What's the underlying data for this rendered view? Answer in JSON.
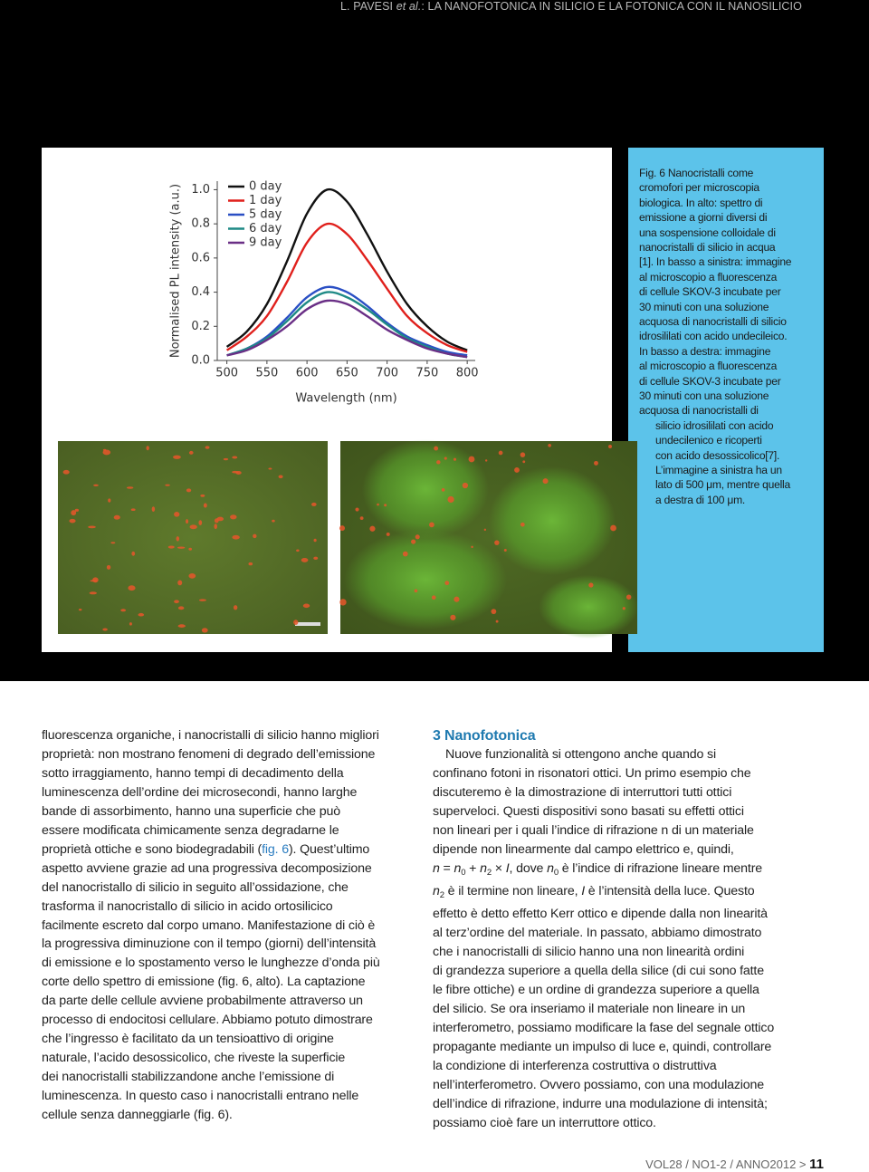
{
  "header": {
    "segments": [
      "L. PAVESI ",
      "et al.",
      ": LA NANOFOTONICA IN SILICIO E LA FOTONICA CON IL NANOSILICIO"
    ]
  },
  "chart_data": {
    "type": "line",
    "x_label": "Wavelength (nm)",
    "y_label": "Normalised PL intensity (a.u.)",
    "x": [
      500,
      525,
      550,
      575,
      600,
      625,
      650,
      675,
      700,
      725,
      750,
      775,
      800
    ],
    "series": [
      {
        "name": "0 day",
        "color": "#111111",
        "values": [
          0.08,
          0.17,
          0.33,
          0.58,
          0.86,
          1.0,
          0.93,
          0.74,
          0.52,
          0.33,
          0.2,
          0.11,
          0.06
        ]
      },
      {
        "name": "1 day",
        "color": "#e0201c",
        "values": [
          0.06,
          0.14,
          0.26,
          0.46,
          0.69,
          0.8,
          0.74,
          0.59,
          0.42,
          0.26,
          0.16,
          0.09,
          0.05
        ]
      },
      {
        "name": "5 day",
        "color": "#2a4fc4",
        "values": [
          0.03,
          0.07,
          0.14,
          0.25,
          0.37,
          0.43,
          0.4,
          0.32,
          0.22,
          0.14,
          0.09,
          0.05,
          0.03
        ]
      },
      {
        "name": "6 day",
        "color": "#1f8a86",
        "values": [
          0.03,
          0.07,
          0.13,
          0.23,
          0.34,
          0.4,
          0.37,
          0.3,
          0.21,
          0.13,
          0.08,
          0.04,
          0.02
        ]
      },
      {
        "name": "9 day",
        "color": "#6a2f86",
        "values": [
          0.03,
          0.06,
          0.12,
          0.2,
          0.3,
          0.35,
          0.33,
          0.26,
          0.18,
          0.12,
          0.07,
          0.04,
          0.02
        ]
      }
    ],
    "xlim": [
      488,
      810
    ],
    "ylim": [
      0,
      1.05
    ],
    "xticks": [
      500,
      550,
      600,
      650,
      700,
      750,
      800
    ],
    "yticks": [
      {
        "value": 0,
        "label": "0.0"
      },
      0.2,
      0.4,
      0.6,
      0.8,
      {
        "value": 1,
        "label": "1.0"
      }
    ],
    "legend": "upper left"
  },
  "caption": {
    "lines": [
      "Fig. 6  Nanocristalli come",
      "cromofori per microscopia",
      "biologica. In alto: spettro di",
      "emissione a giorni diversi di",
      "una sospensione colloidale di",
      "nanocristalli di silicio in acqua",
      "[1]. In basso a sinistra: immagine",
      "al microscopio a fluorescenza",
      "di cellule SKOV-3 incubate per",
      "30 minuti con una soluzione",
      "acquosa di nanocristalli di silicio",
      "idrosililati con acido undecileico.",
      "In basso a destra: immagine",
      "al microscopio a fluorescenza",
      "di cellule SKOV-3 incubate per",
      "30 minuti con una soluzione",
      "acquosa di nanocristalli di",
      "silicio idrosililati con acido",
      "undecilenico e ricoperti",
      "con acido desossicolico[7].",
      "L’immagine a sinistra ha un",
      "lato di 500 μm, mentre quella",
      "a destra di 100 μm."
    ]
  },
  "body": {
    "left": {
      "lines": [
        "fluorescenza organiche, i nanocristalli di silicio hanno migliori",
        "proprietà: non mostrano fenomeni di degrado dell’emissione",
        "sotto irraggiamento, hanno tempi di decadimento della",
        "luminescenza dell’ordine dei microsecondi, hanno larghe",
        "bande di assorbimento, hanno una superficie che può",
        "essere modificata chimicamente senza degradarne le",
        [
          "proprietà ottiche e sono biodegradabili (",
          "fig. 6",
          "). Quest’ultimo"
        ],
        "aspetto avviene grazie ad una progressiva decomposizione",
        "del nanocristallo di silicio in seguito all’ossidazione, che",
        "trasforma il nanocristallo di silicio in acido ortosilicico",
        "facilmente escreto dal corpo umano. Manifestazione di ciò è",
        "la progressiva diminuzione con il tempo (giorni) dell’intensità",
        "di emissione e lo spostamento verso le lunghezze d’onda più",
        "corte dello spettro di emissione (fig. 6, alto). La captazione",
        "da parte delle cellule avviene probabilmente attraverso un",
        "processo di endocitosi cellulare. Abbiamo potuto dimostrare",
        "che l’ingresso è facilitato da un tensioattivo di origine",
        "naturale, l’acido desossicolico, che riveste la superficie",
        "dei nanocristalli stabilizzandone anche l’emissione di",
        "luminescenza. In questo caso i nanocristalli entrano nelle",
        "cellule senza danneggiarle (fig. 6)."
      ]
    },
    "right": {
      "heading": "3  Nanofotonica",
      "lines": [
        "Nuove funzionalità si ottengono anche quando si",
        "confinano fotoni in risonatori ottici. Un primo esempio che",
        "discuteremo è la dimostrazione di interruttori tutti ottici",
        "superveloci. Questi dispositivi sono basati su effetti ottici",
        "non lineari per i quali l’indice di rifrazione n di un materiale",
        "dipende non linearmente dal campo elettrico e, quindi,",
        [
          "n",
          " = ",
          "n",
          "0",
          " + ",
          "n",
          "2",
          " × ",
          "I",
          ", dove ",
          "n",
          "0",
          " è l’indice di rifrazione lineare mentre"
        ],
        [
          "n",
          "2",
          " è il termine non lineare, ",
          "I",
          " è l’intensità della luce. Questo"
        ],
        "effetto è detto effetto Kerr ottico e dipende dalla non linearità",
        "al terz’ordine del materiale. In passato, abbiamo dimostrato",
        "che i nanocristalli di silicio hanno una non linearità ordini",
        "di grandezza superiore a quella della silice (di cui sono fatte",
        "le fibre ottiche) e un ordine di grandezza superiore a quella",
        "del silicio. Se ora inseriamo il materiale non lineare in un",
        "interferometro, possiamo modificare la fase del segnale ottico",
        "propagante mediante un impulso di luce e, quindi, controllare",
        "la condizione di interferenza costruttiva o distruttiva",
        "nell’interferometro. Ovvero possiamo, con una modulazione",
        "dell’indice di rifrazione, indurre una modulazione di intensità;",
        "possiamo cioè fare un interruttore ottico."
      ]
    }
  },
  "footer": {
    "issue": "VOL28 / NO1-2 / ANNO2012 >",
    "page": "11"
  }
}
